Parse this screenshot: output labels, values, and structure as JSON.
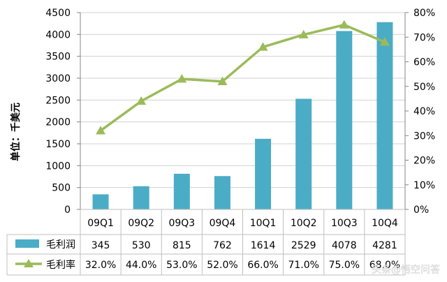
{
  "chart_data": {
    "type": "bar",
    "categories": [
      "09Q1",
      "09Q2",
      "09Q3",
      "09Q4",
      "10Q1",
      "10Q2",
      "10Q3",
      "10Q4"
    ],
    "ylabel": "单位：千美元",
    "ylim": [
      0,
      4500
    ],
    "yticks": [
      "0",
      "500",
      "1000",
      "1500",
      "2000",
      "2500",
      "3000",
      "3500",
      "4000",
      "4500"
    ],
    "y2lim": [
      0,
      80
    ],
    "y2ticks": [
      "0%",
      "10%",
      "20%",
      "30%",
      "40%",
      "50%",
      "60%",
      "70%",
      "80%"
    ],
    "grid": true,
    "legend": "data-table-left",
    "series": [
      {
        "name": "毛利润",
        "kind": "bar",
        "axis": "left",
        "values": [
          345,
          530,
          815,
          762,
          1614,
          2529,
          4078,
          4281
        ],
        "labels": [
          "345",
          "530",
          "815",
          "762",
          "1614",
          "2529",
          "4078",
          "4281"
        ]
      },
      {
        "name": "毛利率",
        "kind": "line",
        "axis": "right",
        "values": [
          32,
          44,
          53,
          52,
          66,
          71,
          75,
          68
        ],
        "labels": [
          "32.0%",
          "44.0%",
          "53.0%",
          "52.0%",
          "66.0%",
          "71.0%",
          "75.0%",
          "68.0%"
        ]
      }
    ]
  },
  "colors": {
    "bar": "#4bacc6",
    "line": "#9bbb59",
    "grid": "#d0d0d0",
    "axis": "#868686",
    "text": "#000000"
  },
  "watermark": "头条@悟空问答"
}
